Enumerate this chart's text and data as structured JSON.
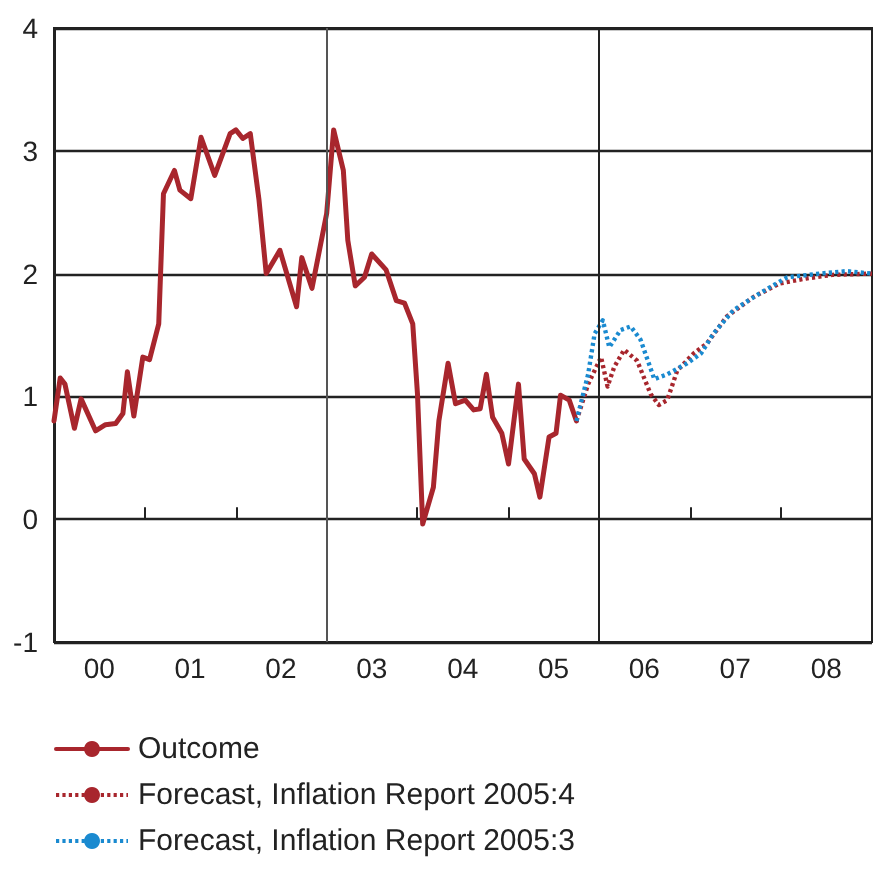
{
  "chart_data": {
    "type": "line",
    "xlim": [
      "2000-01",
      "2009-01"
    ],
    "xticks": [
      {
        "value": "2000-07",
        "label": "00"
      },
      {
        "value": "2001-01",
        "label": null
      },
      {
        "value": "2001-07",
        "label": "01"
      },
      {
        "value": "2002-01",
        "label": null
      },
      {
        "value": "2002-07",
        "label": "02"
      },
      {
        "value": "2003-01",
        "label": null
      },
      {
        "value": "2003-07",
        "label": "03"
      },
      {
        "value": "2004-01",
        "label": null
      },
      {
        "value": "2004-07",
        "label": "04"
      },
      {
        "value": "2005-01",
        "label": null
      },
      {
        "value": "2005-07",
        "label": "05"
      },
      {
        "value": "2006-01",
        "label": null
      },
      {
        "value": "2006-07",
        "label": "06"
      },
      {
        "value": "2007-01",
        "label": null
      },
      {
        "value": "2007-07",
        "label": "07"
      },
      {
        "value": "2008-01",
        "label": null
      },
      {
        "value": "2008-07",
        "label": "08"
      }
    ],
    "ylim": [
      -1,
      4
    ],
    "yticks": [
      -1,
      0,
      1,
      2,
      3,
      4
    ],
    "grid": "y",
    "legend": "bottom",
    "marker": "none",
    "ref_lines": [
      {
        "axis": "x",
        "value": "2003-01",
        "label": null,
        "color": "#555555"
      },
      {
        "axis": "x",
        "value": "2006-01",
        "label": null,
        "color": "#222222"
      }
    ],
    "series": [
      {
        "name": "Outcome",
        "color": "#a8262d",
        "line_style": "solid",
        "x": [
          "2000-01-01",
          "2000-01-26",
          "2000-02-14",
          "2000-03-23",
          "2000-04-19",
          "2000-06-16",
          "2000-07-26",
          "2000-09-05",
          "2000-10-04",
          "2000-10-22",
          "2000-11-17",
          "2000-12-23",
          "2001-01-19",
          "2001-02-25",
          "2001-03-16",
          "2001-04-29",
          "2001-05-21",
          "2001-07-04",
          "2001-08-14",
          "2001-10-08",
          "2001-12-09",
          "2002-01-01",
          "2002-01-29",
          "2002-02-28",
          "2002-04-04",
          "2002-05-03",
          "2002-06-27",
          "2002-09-02",
          "2002-09-23",
          "2002-11-03",
          "2003-01-01",
          "2003-01-29",
          "2003-03-09",
          "2003-03-27",
          "2003-04-26",
          "2003-06-02",
          "2003-07-01",
          "2003-08-28",
          "2003-10-08",
          "2003-11-10",
          "2003-12-13",
          "2004-01-01",
          "2004-01-22",
          "2004-03-05",
          "2004-03-27",
          "2004-05-03",
          "2004-06-02",
          "2004-07-11",
          "2004-08-14",
          "2004-09-09",
          "2004-10-04",
          "2004-10-29",
          "2004-12-05",
          "2005-01-01",
          "2005-02-10",
          "2005-03-05",
          "2005-04-15",
          "2005-05-07",
          "2005-06-13",
          "2005-07-11",
          "2005-07-29",
          "2005-09-02",
          "2005-10-01"
        ],
        "values": [
          0.8,
          1.15,
          1.1,
          0.74,
          0.98,
          0.72,
          0.77,
          0.78,
          0.86,
          1.2,
          0.84,
          1.32,
          1.3,
          1.59,
          2.65,
          2.84,
          2.68,
          2.61,
          3.11,
          2.8,
          3.14,
          3.17,
          3.1,
          3.14,
          2.6,
          2.0,
          2.19,
          1.73,
          2.13,
          1.88,
          2.49,
          3.17,
          2.84,
          2.27,
          1.9,
          1.97,
          2.16,
          2.03,
          1.78,
          1.76,
          1.59,
          1.02,
          -0.04,
          0.26,
          0.8,
          1.27,
          0.94,
          0.97,
          0.89,
          0.9,
          1.18,
          0.83,
          0.7,
          0.45,
          1.1,
          0.49,
          0.37,
          0.18,
          0.67,
          0.7,
          1.01,
          0.97,
          0.8
        ]
      },
      {
        "name": "Forecast, Inflation Report 2005:4",
        "color": "#a8262d",
        "line_style": "dotted",
        "x": [
          "2005-10-01",
          "2005-11-17",
          "2006-01-08",
          "2006-02-03",
          "2006-03-02",
          "2006-04-11",
          "2006-06-02",
          "2006-07-26",
          "2006-08-28",
          "2006-10-01",
          "2006-11-10",
          "2007-01-15",
          "2007-03-09",
          "2007-05-28",
          "2007-09-13",
          "2007-12-27",
          "2008-04-11",
          "2008-07-26",
          "2009-01-01"
        ],
        "values": [
          0.8,
          1.1,
          1.32,
          1.08,
          1.24,
          1.38,
          1.29,
          1.02,
          0.93,
          0.97,
          1.21,
          1.35,
          1.43,
          1.65,
          1.81,
          1.92,
          1.96,
          1.99,
          2.0
        ]
      },
      {
        "name": "Forecast, Inflation Report 2005:3",
        "color": "#1a8ad0",
        "line_style": "dotted",
        "x": [
          "2005-10-01",
          "2005-11-17",
          "2005-12-13",
          "2006-01-15",
          "2006-02-10",
          "2006-03-27",
          "2006-05-07",
          "2006-06-16",
          "2006-08-10",
          "2006-10-01",
          "2006-12-20",
          "2007-02-14",
          "2007-04-04",
          "2007-06-23",
          "2007-10-08",
          "2008-01-26",
          "2008-06-05",
          "2008-09-20",
          "2009-01-01"
        ],
        "values": [
          0.8,
          1.18,
          1.51,
          1.62,
          1.4,
          1.54,
          1.57,
          1.46,
          1.14,
          1.18,
          1.27,
          1.35,
          1.51,
          1.7,
          1.84,
          1.97,
          2.0,
          2.02,
          2.0
        ]
      }
    ]
  }
}
